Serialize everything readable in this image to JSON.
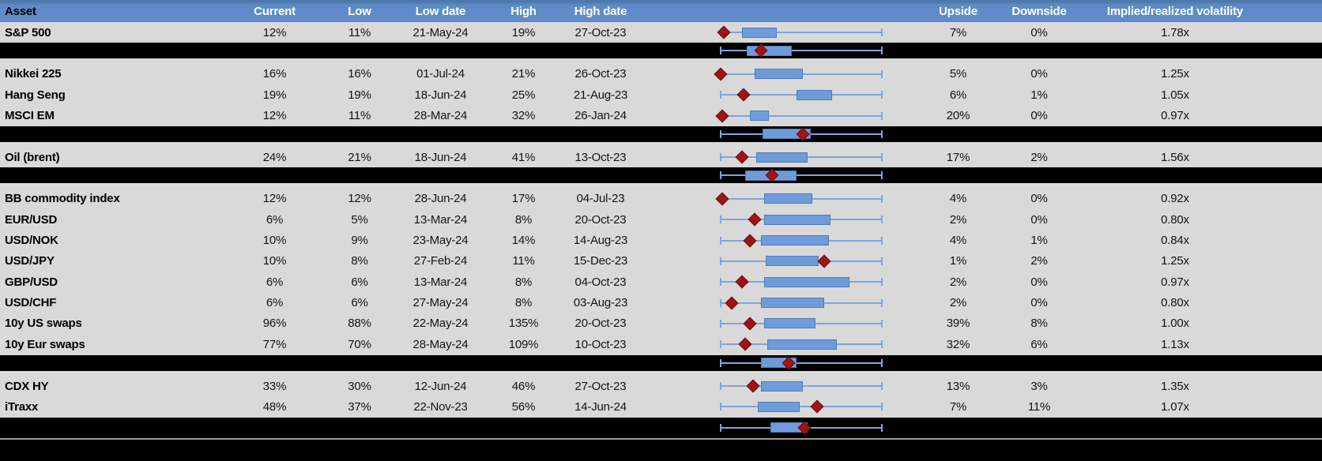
{
  "colors": {
    "header_top": "#4c78ab",
    "header_bg": "#5f8cc8",
    "row_bg": "#d9d9d9",
    "band_bg": "#000000",
    "box_fill": "#6f9cd8",
    "box_border": "#4d7cba",
    "whisker": "#7ea6dc",
    "marker_fill": "#9e1515",
    "marker_border": "#6e0c0c",
    "divider": "#9a9a9a"
  },
  "chart_data": {
    "type": "table",
    "title": "Implied volatility by asset with 1y low-high range box-whisker plots",
    "boxplot_note": "Whisker spans the full normalized low-high range (0 to 1); blue box = middle band of the range; red diamond = current level. Black rows are group aggregates with whisker caps at both ends.",
    "columns": [
      "Asset",
      "Current",
      "Low",
      "Low date",
      "High",
      "High date",
      "",
      "Upside",
      "Downside",
      "Implied/realized volatility"
    ],
    "rows": [
      {
        "kind": "asset",
        "cells": {
          "asset": "S&P 500",
          "current": "12%",
          "low": "11%",
          "low_date": "21-May-24",
          "high": "19%",
          "high_date": "27-Oct-23",
          "upside": "7%",
          "downside": "0%",
          "implied_realized": "1.78x"
        },
        "boxplot": {
          "whisker_lo": 0,
          "whisker_hi": 1,
          "box_lo": 0.13,
          "box_hi": 0.35,
          "marker": 0.02
        }
      },
      {
        "kind": "group_summary",
        "boxplot": {
          "whisker_lo": 0,
          "whisker_hi": 1,
          "box_lo": 0.16,
          "box_hi": 0.44,
          "marker": 0.25
        }
      },
      {
        "kind": "asset",
        "cells": {
          "asset": "Nikkei 225",
          "current": "16%",
          "low": "16%",
          "low_date": "01-Jul-24",
          "high": "21%",
          "high_date": "26-Oct-23",
          "upside": "5%",
          "downside": "0%",
          "implied_realized": "1.25x"
        },
        "boxplot": {
          "whisker_lo": 0,
          "whisker_hi": 1,
          "box_lo": 0.21,
          "box_hi": 0.51,
          "marker": 0.0
        }
      },
      {
        "kind": "asset",
        "cells": {
          "asset": "Hang Seng",
          "current": "19%",
          "low": "19%",
          "low_date": "18-Jun-24",
          "high": "25%",
          "high_date": "21-Aug-23",
          "upside": "6%",
          "downside": "1%",
          "implied_realized": "1.05x"
        },
        "boxplot": {
          "whisker_lo": 0,
          "whisker_hi": 1,
          "box_lo": 0.47,
          "box_hi": 0.69,
          "marker": 0.14
        }
      },
      {
        "kind": "asset",
        "cells": {
          "asset": "MSCI EM",
          "current": "12%",
          "low": "11%",
          "low_date": "28-Mar-24",
          "high": "32%",
          "high_date": "26-Jan-24",
          "upside": "20%",
          "downside": "0%",
          "implied_realized": "0.97x"
        },
        "boxplot": {
          "whisker_lo": 0,
          "whisker_hi": 1,
          "box_lo": 0.18,
          "box_hi": 0.3,
          "marker": 0.01
        }
      },
      {
        "kind": "group_summary",
        "boxplot": {
          "whisker_lo": 0,
          "whisker_hi": 1,
          "box_lo": 0.26,
          "box_hi": 0.56,
          "marker": 0.51
        }
      },
      {
        "kind": "asset",
        "cells": {
          "asset": "Oil (brent)",
          "current": "24%",
          "low": "21%",
          "low_date": "18-Jun-24",
          "high": "41%",
          "high_date": "13-Oct-23",
          "upside": "17%",
          "downside": "2%",
          "implied_realized": "1.56x"
        },
        "boxplot": {
          "whisker_lo": 0,
          "whisker_hi": 1,
          "box_lo": 0.22,
          "box_hi": 0.54,
          "marker": 0.13
        }
      },
      {
        "kind": "group_summary",
        "boxplot": {
          "whisker_lo": 0,
          "whisker_hi": 1,
          "box_lo": 0.15,
          "box_hi": 0.47,
          "marker": 0.32
        }
      },
      {
        "kind": "asset",
        "cells": {
          "asset": "BB commodity index",
          "current": "12%",
          "low": "12%",
          "low_date": "28-Jun-24",
          "high": "17%",
          "high_date": "04-Jul-23",
          "upside": "4%",
          "downside": "0%",
          "implied_realized": "0.92x"
        },
        "boxplot": {
          "whisker_lo": 0,
          "whisker_hi": 1,
          "box_lo": 0.27,
          "box_hi": 0.57,
          "marker": 0.01
        }
      },
      {
        "kind": "asset",
        "cells": {
          "asset": "EUR/USD",
          "current": "6%",
          "low": "5%",
          "low_date": "13-Mar-24",
          "high": "8%",
          "high_date": "20-Oct-23",
          "upside": "2%",
          "downside": "0%",
          "implied_realized": "0.80x"
        },
        "boxplot": {
          "whisker_lo": 0,
          "whisker_hi": 1,
          "box_lo": 0.27,
          "box_hi": 0.68,
          "marker": 0.21
        }
      },
      {
        "kind": "asset",
        "cells": {
          "asset": "USD/NOK",
          "current": "10%",
          "low": "9%",
          "low_date": "23-May-24",
          "high": "14%",
          "high_date": "14-Aug-23",
          "upside": "4%",
          "downside": "1%",
          "implied_realized": "0.84x"
        },
        "boxplot": {
          "whisker_lo": 0,
          "whisker_hi": 1,
          "box_lo": 0.25,
          "box_hi": 0.67,
          "marker": 0.18
        }
      },
      {
        "kind": "asset",
        "cells": {
          "asset": "USD/JPY",
          "current": "10%",
          "low": "8%",
          "low_date": "27-Feb-24",
          "high": "11%",
          "high_date": "15-Dec-23",
          "upside": "1%",
          "downside": "2%",
          "implied_realized": "1.25x"
        },
        "boxplot": {
          "whisker_lo": 0,
          "whisker_hi": 1,
          "box_lo": 0.28,
          "box_hi": 0.61,
          "marker": 0.64
        }
      },
      {
        "kind": "asset",
        "cells": {
          "asset": "GBP/USD",
          "current": "6%",
          "low": "6%",
          "low_date": "13-Mar-24",
          "high": "8%",
          "high_date": "04-Oct-23",
          "upside": "2%",
          "downside": "0%",
          "implied_realized": "0.97x"
        },
        "boxplot": {
          "whisker_lo": 0,
          "whisker_hi": 1,
          "box_lo": 0.27,
          "box_hi": 0.8,
          "marker": 0.13
        }
      },
      {
        "kind": "asset",
        "cells": {
          "asset": "USD/CHF",
          "current": "6%",
          "low": "6%",
          "low_date": "27-May-24",
          "high": "8%",
          "high_date": "03-Aug-23",
          "upside": "2%",
          "downside": "0%",
          "implied_realized": "0.80x"
        },
        "boxplot": {
          "whisker_lo": 0,
          "whisker_hi": 1,
          "box_lo": 0.25,
          "box_hi": 0.64,
          "marker": 0.07
        }
      },
      {
        "kind": "asset",
        "cells": {
          "asset": "10y US swaps",
          "current": "96%",
          "low": "88%",
          "low_date": "22-May-24",
          "high": "135%",
          "high_date": "20-Oct-23",
          "upside": "39%",
          "downside": "8%",
          "implied_realized": "1.00x"
        },
        "boxplot": {
          "whisker_lo": 0,
          "whisker_hi": 1,
          "box_lo": 0.27,
          "box_hi": 0.59,
          "marker": 0.18
        }
      },
      {
        "kind": "asset",
        "cells": {
          "asset": "10y Eur swaps",
          "current": "77%",
          "low": "70%",
          "low_date": "28-May-24",
          "high": "109%",
          "high_date": "10-Oct-23",
          "upside": "32%",
          "downside": "6%",
          "implied_realized": "1.13x"
        },
        "boxplot": {
          "whisker_lo": 0,
          "whisker_hi": 1,
          "box_lo": 0.29,
          "box_hi": 0.72,
          "marker": 0.15
        }
      },
      {
        "kind": "group_summary",
        "boxplot": {
          "whisker_lo": 0,
          "whisker_hi": 1,
          "box_lo": 0.25,
          "box_hi": 0.47,
          "marker": 0.42
        }
      },
      {
        "kind": "asset",
        "cells": {
          "asset": "CDX HY",
          "current": "33%",
          "low": "30%",
          "low_date": "12-Jun-24",
          "high": "46%",
          "high_date": "27-Oct-23",
          "upside": "13%",
          "downside": "3%",
          "implied_realized": "1.35x"
        },
        "boxplot": {
          "whisker_lo": 0,
          "whisker_hi": 1,
          "box_lo": 0.25,
          "box_hi": 0.51,
          "marker": 0.2
        }
      },
      {
        "kind": "asset",
        "cells": {
          "asset": "iTraxx",
          "current": "48%",
          "low": "37%",
          "low_date": "22-Nov-23",
          "high": "56%",
          "high_date": "14-Jun-24",
          "upside": "7%",
          "downside": "11%",
          "implied_realized": "1.07x"
        },
        "boxplot": {
          "whisker_lo": 0,
          "whisker_hi": 1,
          "box_lo": 0.23,
          "box_hi": 0.49,
          "marker": 0.6
        }
      },
      {
        "kind": "group_summary",
        "boxplot": {
          "whisker_lo": 0,
          "whisker_hi": 1,
          "box_lo": 0.31,
          "box_hi": 0.54,
          "marker": 0.52
        }
      }
    ]
  }
}
